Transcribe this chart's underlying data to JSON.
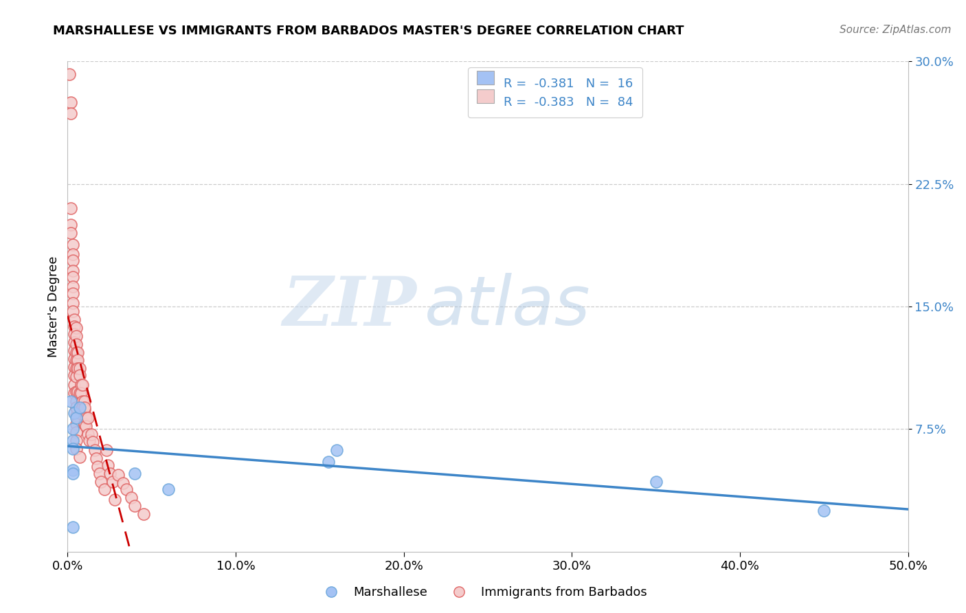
{
  "title": "MARSHALLESE VS IMMIGRANTS FROM BARBADOS MASTER'S DEGREE CORRELATION CHART",
  "source_text": "Source: ZipAtlas.com",
  "ylabel": "Master's Degree",
  "xlim": [
    0,
    0.5
  ],
  "ylim": [
    0,
    0.3
  ],
  "xticks": [
    0.0,
    0.1,
    0.2,
    0.3,
    0.4,
    0.5
  ],
  "xtick_labels": [
    "0.0%",
    "10.0%",
    "20.0%",
    "30.0%",
    "40.0%",
    "50.0%"
  ],
  "yticks": [
    0.075,
    0.15,
    0.225,
    0.3
  ],
  "ytick_labels": [
    "7.5%",
    "15.0%",
    "22.5%",
    "30.0%"
  ],
  "blue_fill_color": "#a4c2f4",
  "pink_fill_color": "#f4cccc",
  "blue_edge_color": "#6fa8dc",
  "pink_edge_color": "#e06666",
  "blue_line_color": "#3d85c8",
  "pink_line_color": "#cc0000",
  "legend_r_blue": "-0.381",
  "legend_n_blue": "16",
  "legend_r_pink": "-0.383",
  "legend_n_pink": "84",
  "watermark_zip": "ZIP",
  "watermark_atlas": "atlas",
  "legend_label_blue": "Marshallese",
  "legend_label_pink": "Immigrants from Barbados",
  "blue_scatter_x": [
    0.002,
    0.003,
    0.003,
    0.003,
    0.004,
    0.005,
    0.007,
    0.04,
    0.06,
    0.16,
    0.155,
    0.35,
    0.45,
    0.003,
    0.003,
    0.003
  ],
  "blue_scatter_y": [
    0.092,
    0.075,
    0.068,
    0.05,
    0.085,
    0.082,
    0.088,
    0.048,
    0.038,
    0.062,
    0.055,
    0.043,
    0.025,
    0.063,
    0.048,
    0.015
  ],
  "pink_scatter_x": [
    0.001,
    0.002,
    0.002,
    0.002,
    0.002,
    0.002,
    0.003,
    0.003,
    0.003,
    0.003,
    0.003,
    0.003,
    0.003,
    0.003,
    0.003,
    0.004,
    0.004,
    0.004,
    0.004,
    0.004,
    0.004,
    0.004,
    0.004,
    0.004,
    0.004,
    0.005,
    0.005,
    0.005,
    0.005,
    0.005,
    0.005,
    0.005,
    0.005,
    0.005,
    0.005,
    0.005,
    0.005,
    0.005,
    0.005,
    0.005,
    0.006,
    0.006,
    0.006,
    0.006,
    0.007,
    0.007,
    0.007,
    0.008,
    0.008,
    0.008,
    0.009,
    0.009,
    0.009,
    0.01,
    0.01,
    0.01,
    0.01,
    0.01,
    0.011,
    0.011,
    0.012,
    0.012,
    0.013,
    0.014,
    0.015,
    0.016,
    0.017,
    0.018,
    0.019,
    0.02,
    0.022,
    0.023,
    0.024,
    0.025,
    0.027,
    0.028,
    0.03,
    0.033,
    0.035,
    0.038,
    0.04,
    0.045,
    0.005,
    0.007
  ],
  "pink_scatter_y": [
    0.292,
    0.275,
    0.268,
    0.21,
    0.2,
    0.195,
    0.188,
    0.182,
    0.178,
    0.172,
    0.168,
    0.162,
    0.158,
    0.152,
    0.147,
    0.142,
    0.138,
    0.133,
    0.128,
    0.123,
    0.118,
    0.113,
    0.108,
    0.102,
    0.097,
    0.092,
    0.088,
    0.083,
    0.078,
    0.073,
    0.068,
    0.137,
    0.132,
    0.127,
    0.122,
    0.117,
    0.112,
    0.107,
    0.098,
    0.088,
    0.122,
    0.117,
    0.112,
    0.098,
    0.112,
    0.108,
    0.097,
    0.102,
    0.097,
    0.087,
    0.102,
    0.092,
    0.088,
    0.092,
    0.087,
    0.078,
    0.088,
    0.078,
    0.082,
    0.077,
    0.082,
    0.072,
    0.068,
    0.072,
    0.067,
    0.062,
    0.057,
    0.052,
    0.048,
    0.043,
    0.038,
    0.062,
    0.053,
    0.048,
    0.043,
    0.032,
    0.047,
    0.042,
    0.038,
    0.033,
    0.028,
    0.023,
    0.063,
    0.058
  ]
}
